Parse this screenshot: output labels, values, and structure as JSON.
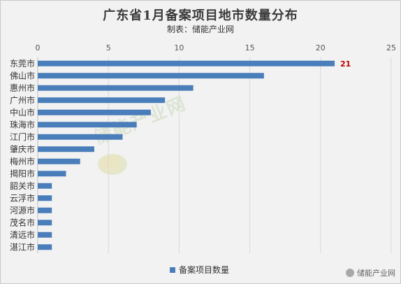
{
  "title": "广东省1月备案项目地市数量分布",
  "subtitle": "制表：储能产业网",
  "watermark": "储能产业网",
  "footer_logo": "储能产业网",
  "colors": {
    "bar": "#4a7ebb",
    "label_highlight": "#c00000",
    "grid": "#d9d9d9"
  },
  "chart_data": {
    "type": "bar",
    "orientation": "horizontal",
    "categories": [
      "东莞市",
      "佛山市",
      "惠州市",
      "广州市",
      "中山市",
      "珠海市",
      "江门市",
      "肇庆市",
      "梅州市",
      "揭阳市",
      "韶关市",
      "云浮市",
      "河源市",
      "茂名市",
      "清远市",
      "湛江市"
    ],
    "series": [
      {
        "name": "备案项目数量",
        "values": [
          21,
          16,
          11,
          9,
          8,
          7,
          6,
          4,
          3,
          2,
          1,
          1,
          1,
          1,
          1,
          1
        ]
      }
    ],
    "data_labels": [
      {
        "category": "东莞市",
        "text": "21"
      }
    ],
    "xlim": [
      0,
      25
    ],
    "xticks": [
      "0",
      "5",
      "10",
      "15",
      "20",
      "25"
    ],
    "xaxis_position": "top",
    "grid": true,
    "legend_position": "bottom"
  }
}
